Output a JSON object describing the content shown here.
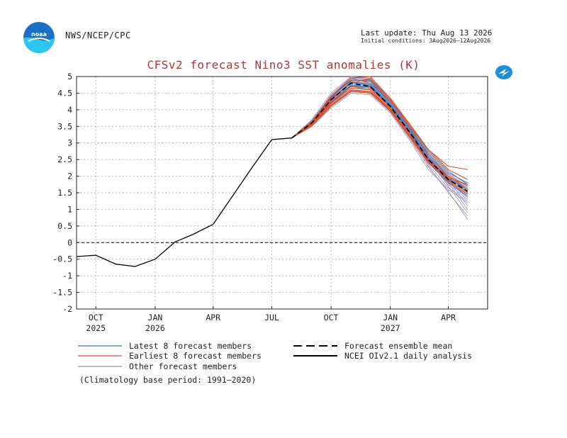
{
  "header": {
    "agency": "NWS/NCEP/CPC",
    "last_update": "Last update: Thu Aug 13 2026",
    "initial_conditions": "Initial conditions: 3Aug2026–12Aug2026",
    "logo_left": "noaa-logo",
    "logo_right": "nws-logo"
  },
  "chart_data": {
    "type": "line",
    "title": "CFSv2 forecast Nino3 SST anomalies (K)",
    "xlabel": "",
    "ylabel": "",
    "ylim": [
      -2,
      5
    ],
    "yticks": [
      -2,
      -1.5,
      -1,
      -0.5,
      0,
      0.5,
      1,
      1.5,
      2,
      2.5,
      3,
      3.5,
      4,
      4.5,
      5
    ],
    "ytick_labels": [
      "-2",
      "-1.5",
      "-1",
      "-0.5",
      "0",
      "0.5",
      "1",
      "1.5",
      "2",
      "2.5",
      "3",
      "3.5",
      "4",
      "4.5",
      "5"
    ],
    "xlim": [
      "2025-09-01",
      "2027-06-01"
    ],
    "xticks": [
      {
        "date": "2025-10-01",
        "label": "OCT",
        "year": "2025"
      },
      {
        "date": "2026-01-01",
        "label": "JAN",
        "year": "2026"
      },
      {
        "date": "2026-04-01",
        "label": "APR",
        "year": ""
      },
      {
        "date": "2026-07-01",
        "label": "JUL",
        "year": ""
      },
      {
        "date": "2026-10-01",
        "label": "OCT",
        "year": ""
      },
      {
        "date": "2027-01-01",
        "label": "JAN",
        "year": "2027"
      },
      {
        "date": "2027-04-01",
        "label": "APR",
        "year": ""
      }
    ],
    "grid": true,
    "zero_line": true,
    "observed": {
      "name": "NCEI OIv2.1 daily analysis",
      "x": [
        "2025-09-01",
        "2025-10-01",
        "2025-11-01",
        "2025-12-01",
        "2026-01-01",
        "2026-02-01",
        "2026-03-01",
        "2026-04-01",
        "2026-05-01",
        "2026-06-01",
        "2026-07-01",
        "2026-08-01"
      ],
      "y": [
        -0.42,
        -0.38,
        -0.65,
        -0.72,
        -0.5,
        0.02,
        0.25,
        0.55,
        1.4,
        2.28,
        3.1,
        3.15
      ]
    },
    "forecast_x": [
      "2026-08-01",
      "2026-09-01",
      "2026-10-01",
      "2026-11-01",
      "2026-12-01",
      "2027-01-01",
      "2027-02-01",
      "2027-03-01",
      "2027-04-01",
      "2027-05-01"
    ],
    "ensemble_mean": {
      "name": "Forecast ensemble mean",
      "y": [
        3.15,
        3.6,
        4.3,
        4.8,
        4.7,
        4.1,
        3.3,
        2.5,
        1.9,
        1.55
      ]
    },
    "members_latest": {
      "name": "Latest 8 forecast members",
      "color": "#2f6fbf",
      "series": [
        [
          3.15,
          3.62,
          4.35,
          4.9,
          4.85,
          4.2,
          3.4,
          2.6,
          2.0,
          1.65
        ],
        [
          3.15,
          3.58,
          4.25,
          4.75,
          4.7,
          4.1,
          3.3,
          2.5,
          1.9,
          1.5
        ],
        [
          3.15,
          3.65,
          4.4,
          4.95,
          4.8,
          4.25,
          3.45,
          2.7,
          2.1,
          1.8
        ],
        [
          3.15,
          3.55,
          4.2,
          4.7,
          4.6,
          4.0,
          3.2,
          2.4,
          1.8,
          1.4
        ],
        [
          3.15,
          3.6,
          4.3,
          4.85,
          4.75,
          4.15,
          3.35,
          2.55,
          1.95,
          1.55
        ],
        [
          3.15,
          3.63,
          4.38,
          4.88,
          4.9,
          4.3,
          3.5,
          2.75,
          2.15,
          1.75
        ],
        [
          3.15,
          3.57,
          4.22,
          4.72,
          4.68,
          4.05,
          3.25,
          2.45,
          1.85,
          1.45
        ],
        [
          3.15,
          3.61,
          4.33,
          4.82,
          4.72,
          4.12,
          3.3,
          2.52,
          1.92,
          1.6
        ]
      ]
    },
    "members_earliest": {
      "name": "Earliest 8 forecast members",
      "color": "#d9502e",
      "series": [
        [
          3.15,
          3.55,
          4.15,
          4.6,
          4.55,
          4.0,
          3.2,
          2.5,
          2.0,
          1.6
        ],
        [
          3.15,
          3.6,
          4.3,
          4.8,
          4.95,
          4.3,
          3.5,
          2.8,
          2.3,
          2.2
        ],
        [
          3.15,
          3.5,
          4.1,
          4.55,
          4.5,
          3.95,
          3.15,
          2.4,
          1.9,
          1.5
        ],
        [
          3.15,
          3.62,
          4.35,
          4.95,
          5.0,
          4.35,
          3.55,
          2.8,
          2.2,
          1.9
        ],
        [
          3.15,
          3.58,
          4.25,
          4.7,
          4.65,
          4.05,
          3.25,
          2.45,
          1.85,
          1.45
        ],
        [
          3.15,
          3.56,
          4.2,
          4.65,
          4.6,
          4.0,
          3.2,
          2.45,
          1.95,
          1.75
        ],
        [
          3.15,
          3.64,
          4.4,
          4.9,
          4.85,
          4.25,
          3.45,
          2.65,
          2.05,
          1.7
        ],
        [
          3.15,
          3.54,
          4.12,
          4.58,
          4.52,
          3.98,
          3.18,
          2.42,
          1.88,
          1.52
        ]
      ]
    },
    "members_other": {
      "name": "Other forecast members",
      "color": "#9a8fb0",
      "series": [
        [
          3.15,
          3.7,
          4.5,
          5.0,
          4.95,
          4.35,
          3.5,
          2.6,
          1.8,
          1.0
        ],
        [
          3.15,
          3.5,
          4.05,
          4.5,
          4.45,
          3.9,
          3.05,
          2.2,
          1.6,
          1.2
        ],
        [
          3.15,
          3.65,
          4.45,
          4.98,
          4.92,
          4.3,
          3.4,
          2.5,
          1.7,
          0.9
        ],
        [
          3.15,
          3.52,
          4.1,
          4.55,
          4.5,
          3.95,
          3.1,
          2.3,
          1.5,
          0.8
        ],
        [
          3.15,
          3.6,
          4.3,
          4.85,
          4.8,
          4.2,
          3.35,
          2.45,
          1.75,
          1.3
        ],
        [
          3.15,
          3.58,
          4.28,
          4.8,
          4.75,
          4.15,
          3.3,
          2.55,
          1.95,
          1.6
        ],
        [
          3.15,
          3.63,
          4.36,
          4.9,
          4.88,
          4.25,
          3.42,
          2.6,
          1.9,
          1.1
        ],
        [
          3.15,
          3.55,
          4.18,
          4.65,
          4.6,
          4.02,
          3.2,
          2.35,
          1.65,
          1.25
        ],
        [
          3.15,
          3.67,
          4.42,
          4.95,
          4.9,
          4.28,
          3.45,
          2.65,
          2.0,
          1.7
        ],
        [
          3.15,
          3.53,
          4.15,
          4.6,
          4.55,
          3.98,
          3.15,
          2.28,
          1.55,
          0.7
        ],
        [
          3.15,
          3.61,
          4.32,
          4.84,
          4.78,
          4.18,
          3.36,
          2.52,
          1.85,
          1.4
        ],
        [
          3.15,
          3.57,
          4.24,
          4.74,
          4.7,
          4.1,
          3.28,
          2.48,
          1.82,
          1.35
        ]
      ]
    },
    "legend": [
      {
        "label": "Latest 8 forecast members",
        "style": "solid-blue"
      },
      {
        "label": "Earliest 8 forecast members",
        "style": "solid-orange"
      },
      {
        "label": "Other forecast members",
        "style": "solid-gray"
      },
      {
        "label": "Forecast ensemble mean",
        "style": "dashed-black"
      },
      {
        "label": "NCEI OIv2.1 daily analysis",
        "style": "solid-black"
      }
    ],
    "legend_position": "bottom",
    "footnote": "(Climatology base period: 1991–2020)"
  }
}
